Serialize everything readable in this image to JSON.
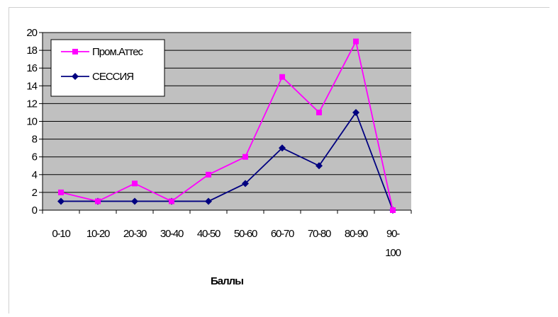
{
  "chart_data": {
    "type": "line",
    "title": "",
    "xlabel": "Баллы",
    "ylabel": "",
    "ylim": [
      0,
      20
    ],
    "yticks": [
      0,
      2,
      4,
      6,
      8,
      10,
      12,
      14,
      16,
      18,
      20
    ],
    "categories": [
      "0-10",
      "10-20",
      "20-30",
      "30-40",
      "40-50",
      "50-60",
      "60-70",
      "70-80",
      "80-90",
      "90-100"
    ],
    "category_lines": [
      [
        "0-10"
      ],
      [
        "10-20"
      ],
      [
        "20-30"
      ],
      [
        "30-40"
      ],
      [
        "40-50"
      ],
      [
        "50-60"
      ],
      [
        "60-70"
      ],
      [
        "70-80"
      ],
      [
        "80-90"
      ],
      [
        "90-",
        "100"
      ]
    ],
    "grid": true,
    "plot_background": "#c0c0c0",
    "legend_position": "top-left",
    "series": [
      {
        "name": "Пром.Аттес",
        "color": "#ff00ff",
        "marker": "square",
        "values": [
          2,
          1,
          3,
          1,
          4,
          6,
          15,
          11,
          19,
          0
        ]
      },
      {
        "name": "СЕССИЯ",
        "color": "#000080",
        "marker": "diamond",
        "values": [
          1,
          1,
          1,
          1,
          1,
          3,
          7,
          5,
          11,
          0
        ]
      }
    ]
  }
}
